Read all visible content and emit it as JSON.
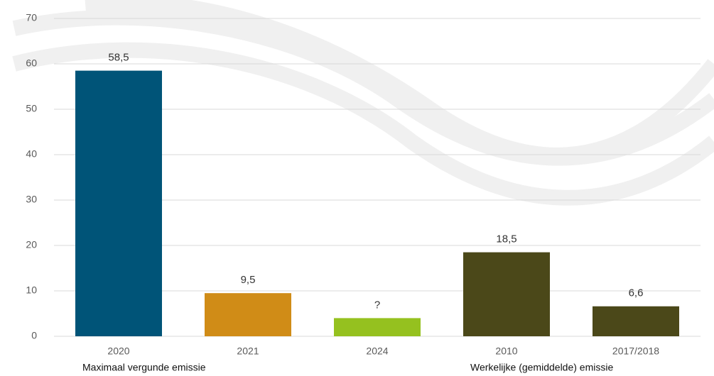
{
  "chart_data": {
    "type": "bar",
    "categories": [
      "2020",
      "2021",
      "2024",
      "2010",
      "2017/2018"
    ],
    "values": [
      58.5,
      9.5,
      4,
      18.5,
      6.6
    ],
    "value_labels": [
      "58,5",
      "9,5",
      "?",
      "18,5",
      "6,6"
    ],
    "colors": [
      "#005478",
      "#d08c17",
      "#95c11f",
      "#4b4819",
      "#4b4819"
    ],
    "group_labels": [
      "Maximaal vergunde emissie",
      "Werkelijke (gemiddelde) emissie"
    ],
    "ylim": [
      0,
      70
    ],
    "yticks": [
      0,
      10,
      20,
      30,
      40,
      50,
      60,
      70
    ],
    "grid": true
  }
}
